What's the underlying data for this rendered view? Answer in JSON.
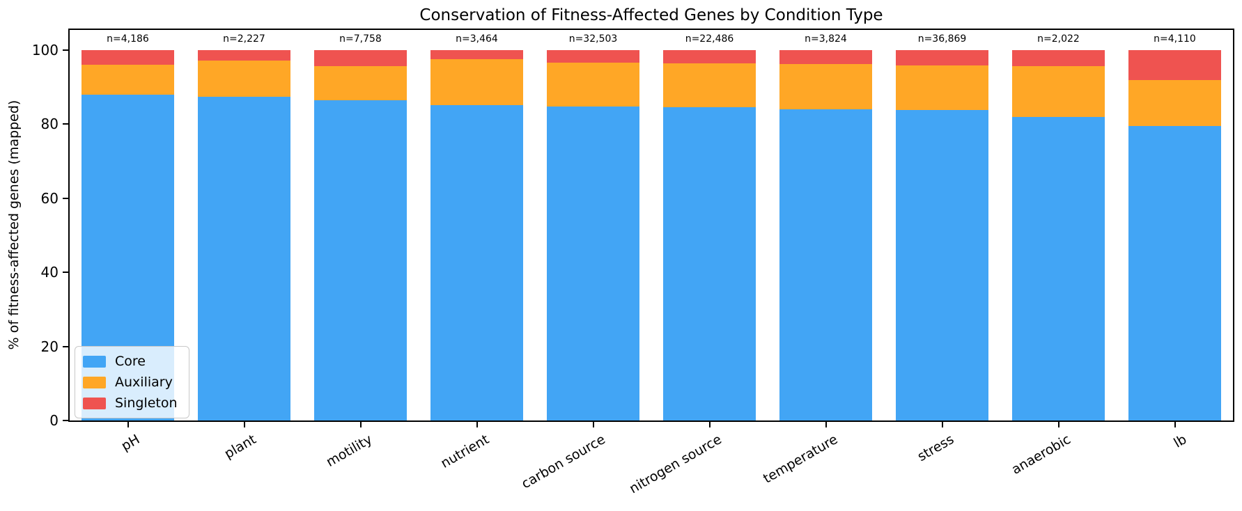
{
  "figure": {
    "title": "Conservation of Fitness-Affected Genes by Condition Type",
    "ylabel": "% of fitness-affected genes (mapped)"
  },
  "colors": {
    "core": "#42A5F5",
    "auxiliary": "#FFA726",
    "singleton": "#EF5350",
    "axis": "#000000",
    "legend_background": "rgba(255,255,255,0.8)",
    "legend_border": "#c8c8c8"
  },
  "legend": {
    "items": [
      {
        "label": "Core",
        "color": "#42A5F5"
      },
      {
        "label": "Auxiliary",
        "color": "#FFA726"
      },
      {
        "label": "Singleton",
        "color": "#EF5350"
      }
    ]
  },
  "chart_data": {
    "type": "bar",
    "stacked": true,
    "title": "Conservation of Fitness-Affected Genes by Condition Type",
    "xlabel": "",
    "ylabel": "% of fitness-affected genes (mapped)",
    "categories": [
      "pH",
      "plant",
      "motility",
      "nutrient",
      "carbon source",
      "nitrogen source",
      "temperature",
      "stress",
      "anaerobic",
      "lb"
    ],
    "series": [
      {
        "name": "Core",
        "color": "#42A5F5",
        "values": [
          88.0,
          87.3,
          86.5,
          85.2,
          84.8,
          84.6,
          84.0,
          83.7,
          81.9,
          79.4
        ]
      },
      {
        "name": "Auxiliary",
        "color": "#FFA726",
        "values": [
          8.0,
          9.8,
          9.2,
          12.4,
          11.8,
          11.8,
          12.2,
          12.2,
          13.8,
          12.4
        ]
      },
      {
        "name": "Singleton",
        "color": "#EF5350",
        "values": [
          4.0,
          2.9,
          4.3,
          2.4,
          3.4,
          3.6,
          3.8,
          4.1,
          4.3,
          8.2
        ]
      }
    ],
    "bar_labels": [
      "n=4,186",
      "n=2,227",
      "n=7,758",
      "n=3,464",
      "n=32,503",
      "n=22,486",
      "n=3,824",
      "n=36,869",
      "n=2,022",
      "n=4,110"
    ],
    "ylim": [
      0,
      105.4
    ],
    "yticks": [
      0,
      20,
      40,
      60,
      80,
      100
    ],
    "grid": false,
    "legend_position": "lower left",
    "xtick_rotation_deg": 30
  }
}
